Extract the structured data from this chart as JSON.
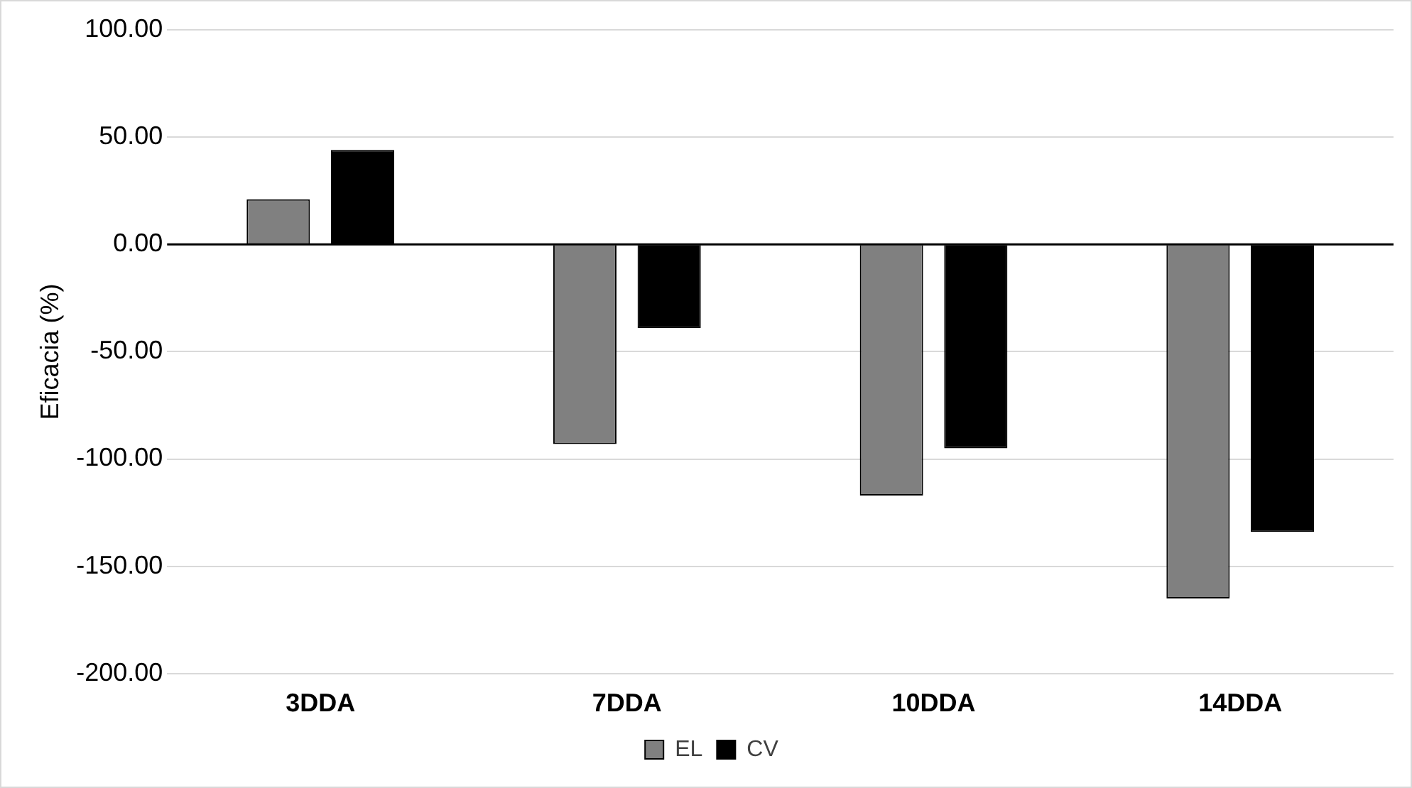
{
  "chart_data": {
    "type": "bar",
    "ylabel": "Eficacia (%)",
    "categories": [
      "3DDA",
      "7DDA",
      "10DDA",
      "14DDA"
    ],
    "series": [
      {
        "name": "EL",
        "color": "#808080",
        "values": [
          21,
          -93,
          -117,
          -165
        ]
      },
      {
        "name": "CV",
        "color": "#000000",
        "values": [
          44,
          -39,
          -95,
          -134
        ]
      }
    ],
    "ylim": [
      -200,
      100
    ],
    "yticks": [
      {
        "value": -200,
        "label": "-200.00"
      },
      {
        "value": -150,
        "label": "-150.00"
      },
      {
        "value": -100,
        "label": "-100.00"
      },
      {
        "value": -50,
        "label": "-50.00"
      },
      {
        "value": 0,
        "label": "0.00"
      },
      {
        "value": 50,
        "label": "50.00"
      },
      {
        "value": 100,
        "label": "100.00"
      }
    ],
    "grid": "y",
    "legend": "bottom"
  }
}
